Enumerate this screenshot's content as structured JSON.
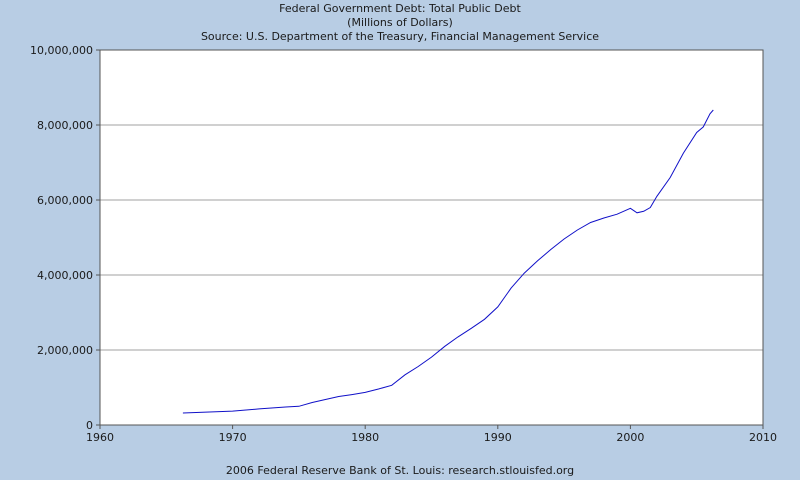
{
  "chart_data": {
    "type": "line",
    "title": "Federal Government Debt: Total Public Debt",
    "subtitle": "(Millions of Dollars)",
    "source": "Source: U.S. Department of the Treasury, Financial Management Service",
    "footer": "2006 Federal Reserve Bank of St. Louis: research.stlouisfed.org",
    "xlabel": "",
    "ylabel": "",
    "xlim": [
      1960,
      2010
    ],
    "ylim": [
      0,
      10000000
    ],
    "x_ticks": [
      1960,
      1970,
      1980,
      1990,
      2000,
      2010
    ],
    "y_ticks": [
      0,
      2000000,
      4000000,
      6000000,
      8000000,
      10000000
    ],
    "y_tick_labels": [
      "0",
      "2,000,000",
      "4,000,000",
      "6,000,000",
      "8,000,000",
      "10,000,000"
    ],
    "grid": "horizontal",
    "series": [
      {
        "color": "#1010c8",
        "x": [
          1966.25,
          1968,
          1970,
          1972,
          1974,
          1975,
          1976,
          1977,
          1978,
          1979,
          1980,
          1981,
          1982,
          1983,
          1984,
          1985,
          1986,
          1987,
          1988,
          1989,
          1990,
          1991,
          1992,
          1993,
          1994,
          1995,
          1996,
          1997,
          1998,
          1999,
          2000,
          2000.5,
          2001,
          2001.5,
          2002,
          2003,
          2004,
          2005,
          2005.5,
          2006,
          2006.25
        ],
        "y": [
          320000,
          345000,
          370000,
          430000,
          480000,
          500000,
          600000,
          680000,
          760000,
          810000,
          870000,
          960000,
          1060000,
          1340000,
          1560000,
          1810000,
          2100000,
          2350000,
          2580000,
          2820000,
          3150000,
          3650000,
          4050000,
          4380000,
          4680000,
          4960000,
          5200000,
          5400000,
          5520000,
          5620000,
          5780000,
          5660000,
          5700000,
          5800000,
          6100000,
          6600000,
          7250000,
          7800000,
          7950000,
          8300000,
          8400000
        ]
      }
    ]
  }
}
